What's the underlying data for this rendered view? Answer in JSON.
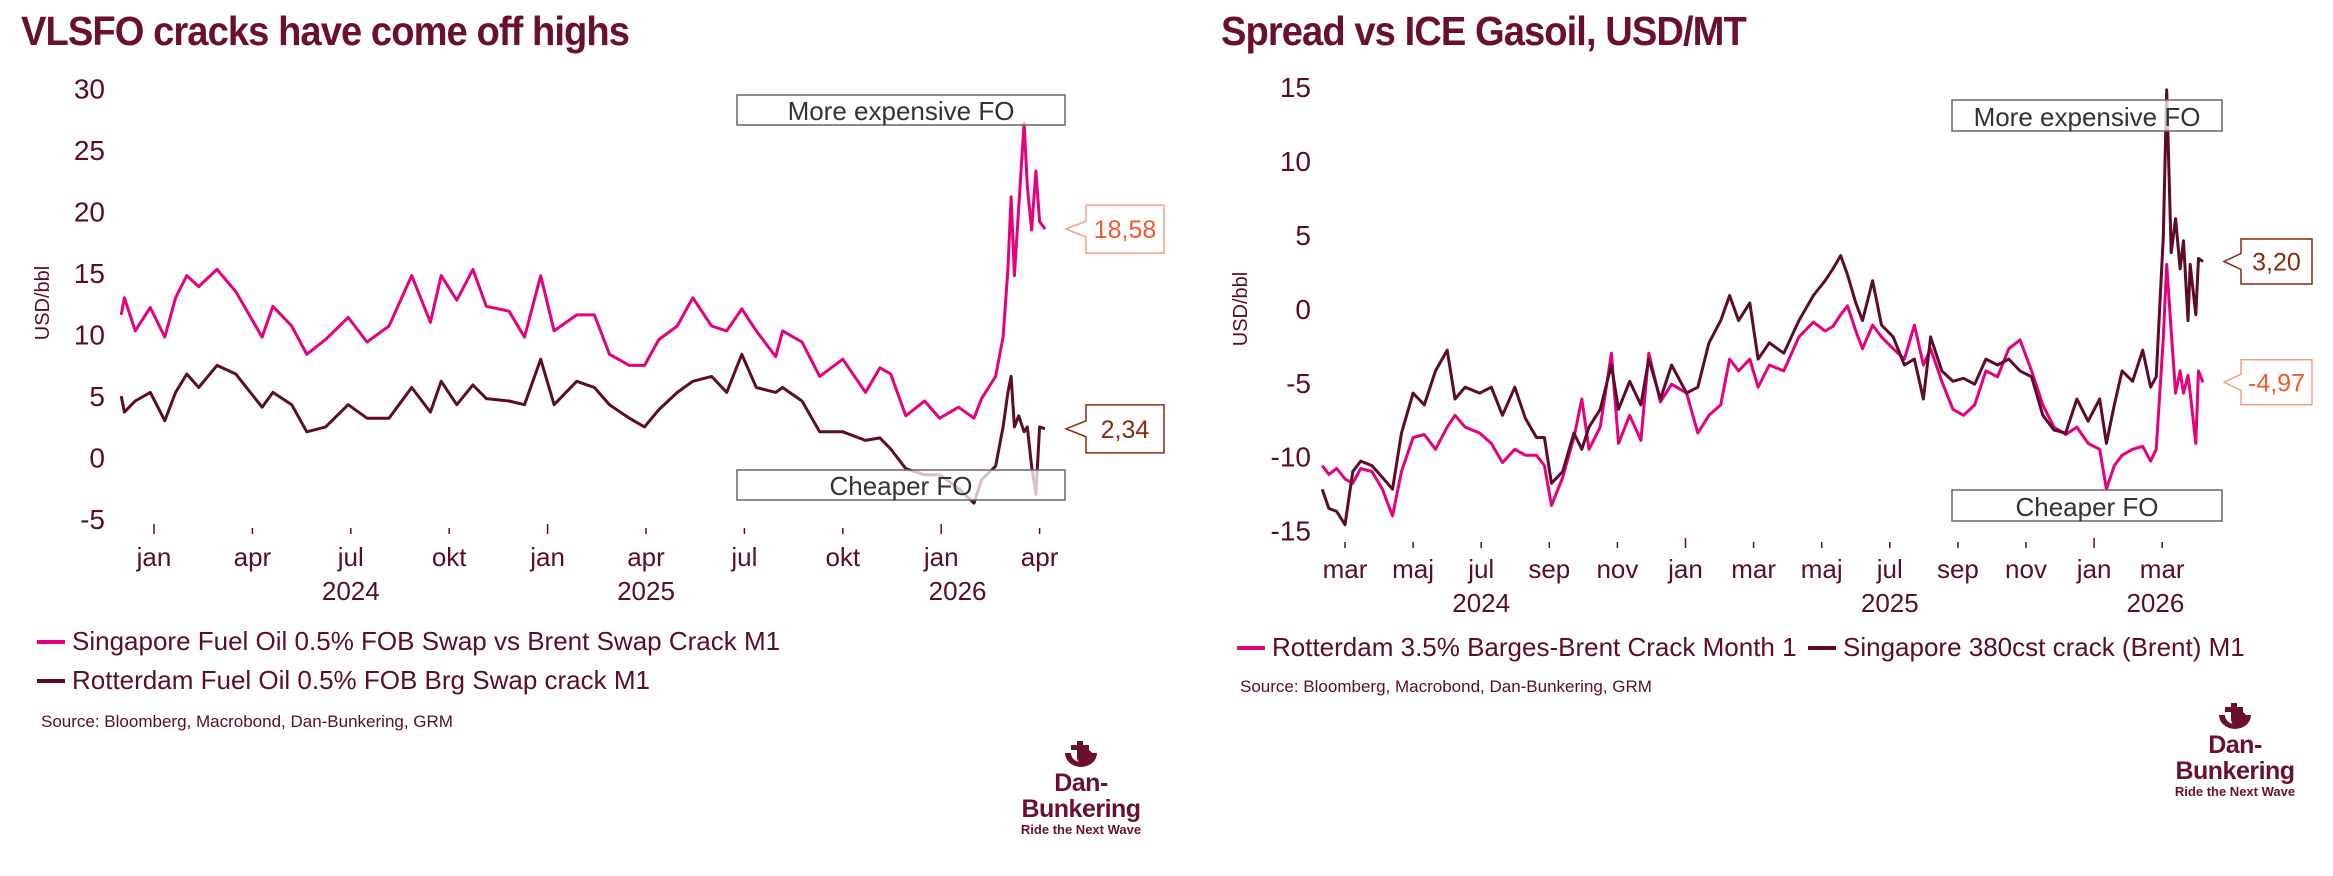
{
  "colors": {
    "pink": "#e5007d",
    "dark": "#5e0a2a",
    "title": "#6a0f2e",
    "callout_orange": "#f05a28",
    "callout_brown": "#8a2a0c"
  },
  "chart_data": [
    {
      "type": "line",
      "title": "VLSFO cracks have come off highs",
      "ylabel": "USD/bbl",
      "ylim": [
        -5,
        30
      ],
      "yticks": [
        "30",
        "25",
        "20",
        "15",
        "10",
        "5",
        "0",
        "-5"
      ],
      "xticks": [
        "jan",
        "apr",
        "jul",
        "okt",
        "jan",
        "apr",
        "jul",
        "okt",
        "jan",
        "apr"
      ],
      "years": [
        "2024",
        "2025",
        "2026"
      ],
      "annotations": {
        "top": "More expensive FO",
        "bottom": "Cheaper FO"
      },
      "dates": [
        "2023-12-01",
        "2023-12-04",
        "2023-12-14",
        "2023-12-28",
        "2024-01-11",
        "2024-01-21",
        "2024-02-01",
        "2024-02-12",
        "2024-02-29",
        "2024-03-16",
        "2024-04-10",
        "2024-04-20",
        "2024-05-07",
        "2024-05-21",
        "2024-06-08",
        "2024-06-29",
        "2024-07-16",
        "2024-08-06",
        "2024-08-27",
        "2024-09-14",
        "2024-09-24",
        "2024-10-08",
        "2024-10-23",
        "2024-11-05",
        "2024-11-26",
        "2024-12-10",
        "2024-12-25",
        "2025-01-07",
        "2025-01-28",
        "2025-02-14",
        "2025-02-28",
        "2025-03-16",
        "2025-03-30",
        "2025-04-13",
        "2025-04-30",
        "2025-05-14",
        "2025-06-01",
        "2025-06-15",
        "2025-06-29",
        "2025-07-12",
        "2025-07-30",
        "2025-08-06",
        "2025-08-24",
        "2025-09-10",
        "2025-10-01",
        "2025-10-22",
        "2025-11-05",
        "2025-11-15",
        "2025-11-29",
        "2025-12-16",
        "2025-12-30",
        "2026-01-17",
        "2026-02-01",
        "2026-02-08",
        "2026-02-21",
        "2026-02-28",
        "2026-03-02",
        "2026-03-05",
        "2026-03-08",
        "2026-03-12",
        "2026-03-17",
        "2026-03-20",
        "2026-03-24",
        "2026-03-28",
        "2026-04-01",
        "2026-04-06"
      ],
      "series": [
        {
          "name": "Singapore Fuel Oil 0.5% FOB Swap vs Brent Swap Crack M1",
          "color": "#e5007d",
          "end_label": "18,58",
          "label_style": "orange",
          "values": [
            11.6,
            13.0,
            10.3,
            12.2,
            9.8,
            13.0,
            14.8,
            13.9,
            15.3,
            13.5,
            9.8,
            12.3,
            10.7,
            8.4,
            9.6,
            11.4,
            9.4,
            10.7,
            14.8,
            11.0,
            14.8,
            12.8,
            15.3,
            12.3,
            11.9,
            9.8,
            14.8,
            10.3,
            11.6,
            11.6,
            8.4,
            7.5,
            7.5,
            9.6,
            10.7,
            13.0,
            10.7,
            10.3,
            12.1,
            10.3,
            8.2,
            10.3,
            9.4,
            6.6,
            8.0,
            5.3,
            7.3,
            6.8,
            3.4,
            4.6,
            3.2,
            4.1,
            3.2,
            4.8,
            6.6,
            9.8,
            15.3,
            21.2,
            14.8,
            20.3,
            27.2,
            22.1,
            18.5,
            23.3,
            19.2,
            18.58
          ]
        },
        {
          "name": "Rotterdam Fuel Oil 0.5% FOB Brg Swap crack M1",
          "color": "#5e0a2a",
          "end_label": "2,34",
          "label_style": "brown",
          "values": [
            5.0,
            3.7,
            4.6,
            5.3,
            3.0,
            5.3,
            6.8,
            5.7,
            7.5,
            6.8,
            4.1,
            5.3,
            4.3,
            2.1,
            2.5,
            4.3,
            3.2,
            3.2,
            5.7,
            3.7,
            6.2,
            4.3,
            5.9,
            4.8,
            4.6,
            4.3,
            8.0,
            4.3,
            6.2,
            5.7,
            4.3,
            3.2,
            2.5,
            3.9,
            5.3,
            6.2,
            6.6,
            5.3,
            8.4,
            5.7,
            5.3,
            5.7,
            4.6,
            2.1,
            2.1,
            1.4,
            1.6,
            0.7,
            -0.9,
            -1.4,
            -1.4,
            -2.5,
            -3.7,
            -1.8,
            -0.7,
            2.5,
            5.3,
            6.6,
            2.5,
            3.4,
            2.1,
            2.5,
            -0.7,
            -3.0,
            2.5,
            2.34
          ]
        }
      ],
      "source": "Source: Bloomberg, Macrobond, Dan-Bunkering, GRM"
    },
    {
      "type": "line",
      "title": "Spread vs ICE Gasoil, USD/MT",
      "ylabel": "USD/bbl",
      "ylim": [
        -15,
        15
      ],
      "yticks": [
        "15",
        "10",
        "5",
        "0",
        "-5",
        "-10",
        "-15"
      ],
      "xticks": [
        "mar",
        "maj",
        "jul",
        "sep",
        "nov",
        "jan",
        "mar",
        "maj",
        "jul",
        "sep",
        "nov",
        "jan",
        "mar"
      ],
      "years": [
        "2024",
        "2025",
        "2026"
      ],
      "annotations": {
        "top": "More expensive FO",
        "bottom": "Cheaper FO"
      },
      "dates": [
        "2024-02-11",
        "2024-02-17",
        "2024-02-24",
        "2024-03-01",
        "2024-03-08",
        "2024-03-15",
        "2024-03-25",
        "2024-04-04",
        "2024-04-13",
        "2024-04-21",
        "2024-05-01",
        "2024-05-11",
        "2024-05-21",
        "2024-06-01",
        "2024-06-08",
        "2024-06-17",
        "2024-06-30",
        "2024-07-10",
        "2024-07-20",
        "2024-07-31",
        "2024-08-10",
        "2024-08-20",
        "2024-08-27",
        "2024-09-03",
        "2024-09-13",
        "2024-09-23",
        "2024-09-30",
        "2024-10-06",
        "2024-10-16",
        "2024-10-26",
        "2024-11-02",
        "2024-11-12",
        "2024-11-22",
        "2024-11-29",
        "2024-12-09",
        "2024-12-19",
        "2025-01-02",
        "2025-01-12",
        "2025-01-22",
        "2025-02-02",
        "2025-02-10",
        "2025-02-18",
        "2025-02-28",
        "2025-03-05",
        "2025-03-15",
        "2025-03-28",
        "2025-04-11",
        "2025-04-24",
        "2025-05-04",
        "2025-05-11",
        "2025-05-18",
        "2025-05-24",
        "2025-06-01",
        "2025-06-07",
        "2025-06-16",
        "2025-06-24",
        "2025-07-04",
        "2025-07-14",
        "2025-07-23",
        "2025-07-31",
        "2025-08-07",
        "2025-08-17",
        "2025-08-27",
        "2025-09-06",
        "2025-09-16",
        "2025-09-26",
        "2025-10-06",
        "2025-10-16",
        "2025-10-26",
        "2025-11-06",
        "2025-11-16",
        "2025-11-26",
        "2025-12-06",
        "2025-12-16",
        "2025-12-26",
        "2026-01-06",
        "2026-01-12",
        "2026-01-19",
        "2026-01-26",
        "2026-02-05",
        "2026-02-14",
        "2026-02-21",
        "2026-02-26",
        "2026-03-02",
        "2026-03-05",
        "2026-03-09",
        "2026-03-13",
        "2026-03-17",
        "2026-03-20",
        "2026-03-24",
        "2026-03-26",
        "2026-03-31",
        "2026-04-03",
        "2026-04-07"
      ],
      "series": [
        {
          "name": "Rotterdam 3.5% Barges-Brent Crack Month 1",
          "color": "#e5007d",
          "end_label": "-4,97",
          "label_style": "orange",
          "values": [
            -10.6,
            -11.2,
            -10.8,
            -11.5,
            -11.8,
            -10.8,
            -11.0,
            -12.2,
            -14.0,
            -11.0,
            -8.7,
            -8.5,
            -9.5,
            -8.0,
            -7.2,
            -8.0,
            -8.4,
            -9.1,
            -10.4,
            -9.5,
            -9.9,
            -9.9,
            -10.6,
            -13.3,
            -11.4,
            -8.7,
            -6.1,
            -9.5,
            -8.0,
            -3.0,
            -9.1,
            -7.2,
            -8.9,
            -3.0,
            -6.3,
            -5.1,
            -5.7,
            -8.4,
            -7.2,
            -6.5,
            -3.4,
            -4.2,
            -3.4,
            -5.3,
            -3.8,
            -4.2,
            -1.9,
            -0.9,
            -1.5,
            -1.2,
            -0.4,
            0.2,
            -1.5,
            -2.7,
            -1.1,
            -1.9,
            -2.7,
            -3.4,
            -1.1,
            -3.8,
            -2.7,
            -4.9,
            -6.8,
            -7.2,
            -6.5,
            -4.2,
            -4.6,
            -2.7,
            -2.1,
            -4.2,
            -6.5,
            -8.0,
            -8.5,
            -8.0,
            -9.1,
            -9.5,
            -12.2,
            -10.6,
            -9.9,
            -9.5,
            -9.3,
            -10.3,
            -9.5,
            -2.0,
            3.0,
            -1.5,
            -5.7,
            -4.2,
            -5.7,
            -4.5,
            -5.7,
            -9.1,
            -4.2,
            -4.97
          ]
        },
        {
          "name": "Singapore 380cst crack (Brent) M1",
          "color": "#5e0a2a",
          "end_label": "3,20",
          "label_style": "brown",
          "values": [
            -12.2,
            -13.5,
            -13.7,
            -14.6,
            -11.0,
            -10.3,
            -10.6,
            -11.4,
            -12.2,
            -8.4,
            -5.7,
            -6.5,
            -4.2,
            -2.8,
            -6.1,
            -5.3,
            -5.7,
            -5.3,
            -7.2,
            -5.3,
            -7.4,
            -8.7,
            -8.7,
            -11.8,
            -11.0,
            -8.4,
            -9.5,
            -8.0,
            -6.8,
            -3.8,
            -6.8,
            -4.9,
            -6.5,
            -3.4,
            -6.1,
            -3.8,
            -5.7,
            -5.3,
            -2.3,
            -0.8,
            0.9,
            -0.8,
            0.4,
            -3.4,
            -2.3,
            -3.0,
            -0.8,
            0.9,
            1.9,
            2.7,
            3.6,
            2.3,
            0.4,
            -0.8,
            1.9,
            -1.1,
            -1.9,
            -3.8,
            -3.4,
            -6.1,
            -1.9,
            -4.2,
            -4.9,
            -4.7,
            -5.1,
            -3.4,
            -3.8,
            -3.4,
            -4.2,
            -4.6,
            -7.2,
            -8.2,
            -8.4,
            -6.1,
            -7.6,
            -6.1,
            -9.1,
            -6.5,
            -4.2,
            -4.9,
            -2.8,
            -5.3,
            -4.6,
            4.9,
            14.8,
            3.8,
            6.1,
            2.7,
            4.6,
            -0.8,
            3.0,
            -0.4,
            3.4,
            3.2
          ]
        }
      ],
      "source": "Source: Bloomberg, Macrobond, Dan-Bunkering, GRM"
    }
  ],
  "logo": {
    "name": "Dan-Bunkering",
    "tagline": "Ride the Next Wave",
    "icon": "anchor-icon"
  }
}
